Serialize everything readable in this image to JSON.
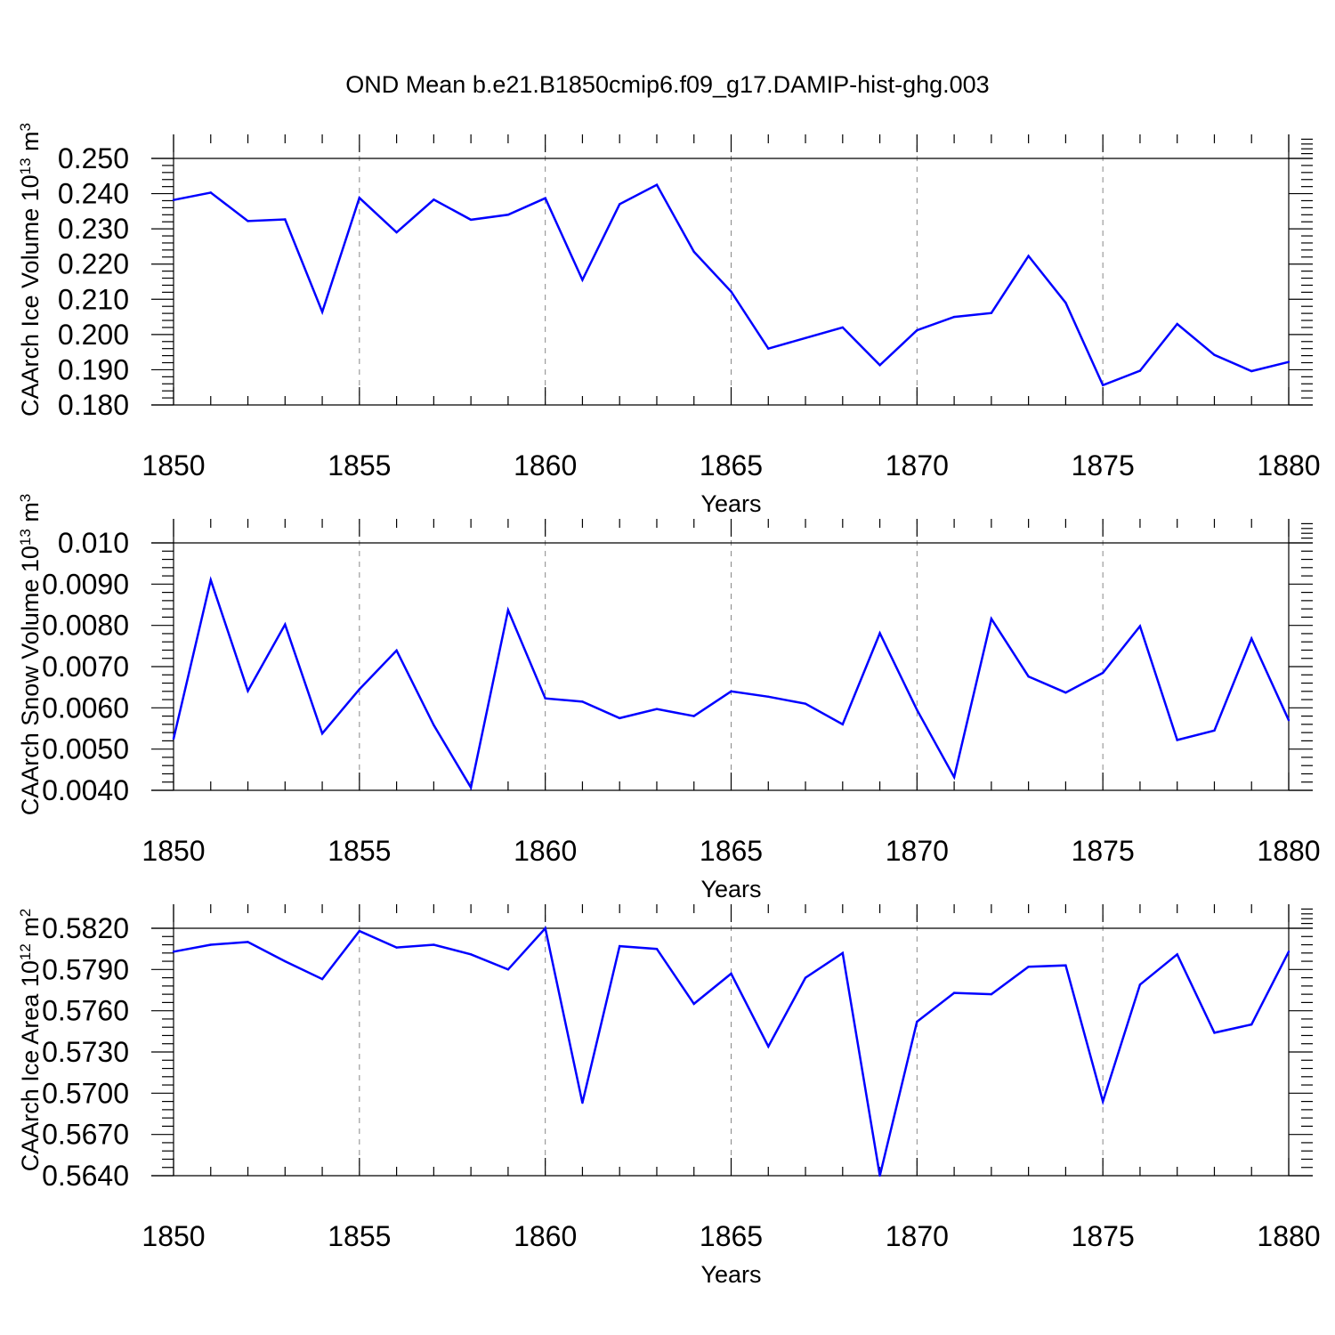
{
  "figure_title": "OND Mean b.e21.B1850cmip6.f09_g17.DAMIP-hist-ghg.003",
  "colors": {
    "series": "#0000ff",
    "frame": "#000000",
    "grid": "#888888"
  },
  "chart_data": [
    {
      "type": "line",
      "ylabel": "CAArch Ice Volume 10",
      "ylabel_exp": "13",
      "ylabel_unit": " m",
      "ylabel_unit_exp": "3",
      "xlabel": "Years",
      "xlim": [
        1850,
        1880
      ],
      "ylim": [
        0.18,
        0.25
      ],
      "xticks": [
        1850,
        1855,
        1860,
        1865,
        1870,
        1875,
        1880
      ],
      "xtick_labels": [
        "1850",
        "1855",
        "1860",
        "1865",
        "1870",
        "1875",
        "1880"
      ],
      "yticks": [
        0.18,
        0.19,
        0.2,
        0.21,
        0.22,
        0.23,
        0.24,
        0.25
      ],
      "ytick_labels": [
        "0.180",
        "0.190",
        "0.200",
        "0.210",
        "0.220",
        "0.230",
        "0.240",
        "0.250"
      ],
      "grid_x": true,
      "x": [
        1850,
        1851,
        1852,
        1853,
        1854,
        1855,
        1856,
        1857,
        1858,
        1859,
        1860,
        1861,
        1862,
        1863,
        1864,
        1865,
        1866,
        1867,
        1868,
        1869,
        1870,
        1871,
        1872,
        1873,
        1874,
        1875,
        1876,
        1877,
        1878,
        1879,
        1880
      ],
      "values": [
        0.2382,
        0.2403,
        0.2322,
        0.2327,
        0.2064,
        0.2388,
        0.229,
        0.2383,
        0.2326,
        0.234,
        0.2387,
        0.2155,
        0.237,
        0.2425,
        0.2235,
        0.2122,
        0.196,
        0.199,
        0.202,
        0.1913,
        0.2012,
        0.205,
        0.2061,
        0.2223,
        0.209,
        0.1856,
        0.1897,
        0.203,
        0.1942,
        0.1896,
        0.1922
      ]
    },
    {
      "type": "line",
      "ylabel": "CAArch Snow Volume 10",
      "ylabel_exp": "13",
      "ylabel_unit": " m",
      "ylabel_unit_exp": "3",
      "xlabel": "Years",
      "xlim": [
        1850,
        1880
      ],
      "ylim": [
        0.004,
        0.01
      ],
      "xticks": [
        1850,
        1855,
        1860,
        1865,
        1870,
        1875,
        1880
      ],
      "xtick_labels": [
        "1850",
        "1855",
        "1860",
        "1865",
        "1870",
        "1875",
        "1880"
      ],
      "yticks": [
        0.004,
        0.005,
        0.006,
        0.007,
        0.008,
        0.009,
        0.01
      ],
      "ytick_labels": [
        "0.0040",
        "0.0050",
        "0.0060",
        "0.0070",
        "0.0080",
        "0.0090",
        "0.010"
      ],
      "grid_x": true,
      "x": [
        1850,
        1851,
        1852,
        1853,
        1854,
        1855,
        1856,
        1857,
        1858,
        1859,
        1860,
        1861,
        1862,
        1863,
        1864,
        1865,
        1866,
        1867,
        1868,
        1869,
        1870,
        1871,
        1872,
        1873,
        1874,
        1875,
        1876,
        1877,
        1878,
        1879,
        1880
      ],
      "values": [
        0.00525,
        0.0091,
        0.00641,
        0.00802,
        0.00538,
        0.00645,
        0.00739,
        0.00558,
        0.00407,
        0.00837,
        0.00623,
        0.00615,
        0.00575,
        0.00597,
        0.0058,
        0.0064,
        0.00627,
        0.0061,
        0.0056,
        0.00781,
        0.00595,
        0.00432,
        0.00816,
        0.00676,
        0.00637,
        0.00685,
        0.00798,
        0.00522,
        0.00545,
        0.00768,
        0.0057
      ]
    },
    {
      "type": "line",
      "ylabel": "CAArch Ice Area 10",
      "ylabel_exp": "12",
      "ylabel_unit": " m",
      "ylabel_unit_exp": "2",
      "xlabel": "Years",
      "xlim": [
        1850,
        1880
      ],
      "ylim": [
        0.564,
        0.582
      ],
      "xticks": [
        1850,
        1855,
        1860,
        1865,
        1870,
        1875,
        1880
      ],
      "xtick_labels": [
        "1850",
        "1855",
        "1860",
        "1865",
        "1870",
        "1875",
        "1880"
      ],
      "yticks": [
        0.564,
        0.567,
        0.57,
        0.573,
        0.576,
        0.579,
        0.582
      ],
      "ytick_labels": [
        "0.5640",
        "0.5670",
        "0.5700",
        "0.5730",
        "0.5760",
        "0.5790",
        "0.5820"
      ],
      "grid_x": true,
      "x": [
        1850,
        1851,
        1852,
        1853,
        1854,
        1855,
        1856,
        1857,
        1858,
        1859,
        1860,
        1861,
        1862,
        1863,
        1864,
        1865,
        1866,
        1867,
        1868,
        1869,
        1870,
        1871,
        1872,
        1873,
        1874,
        1875,
        1876,
        1877,
        1878,
        1879,
        1880
      ],
      "values": [
        0.5803,
        0.5808,
        0.581,
        0.5796,
        0.5783,
        0.5818,
        0.5806,
        0.5808,
        0.5801,
        0.579,
        0.582,
        0.5693,
        0.5807,
        0.5805,
        0.5765,
        0.5787,
        0.5734,
        0.5784,
        0.5802,
        0.564,
        0.5752,
        0.5773,
        0.5772,
        0.5792,
        0.5793,
        0.5694,
        0.5779,
        0.5801,
        0.5744,
        0.575,
        0.5803
      ]
    }
  ]
}
